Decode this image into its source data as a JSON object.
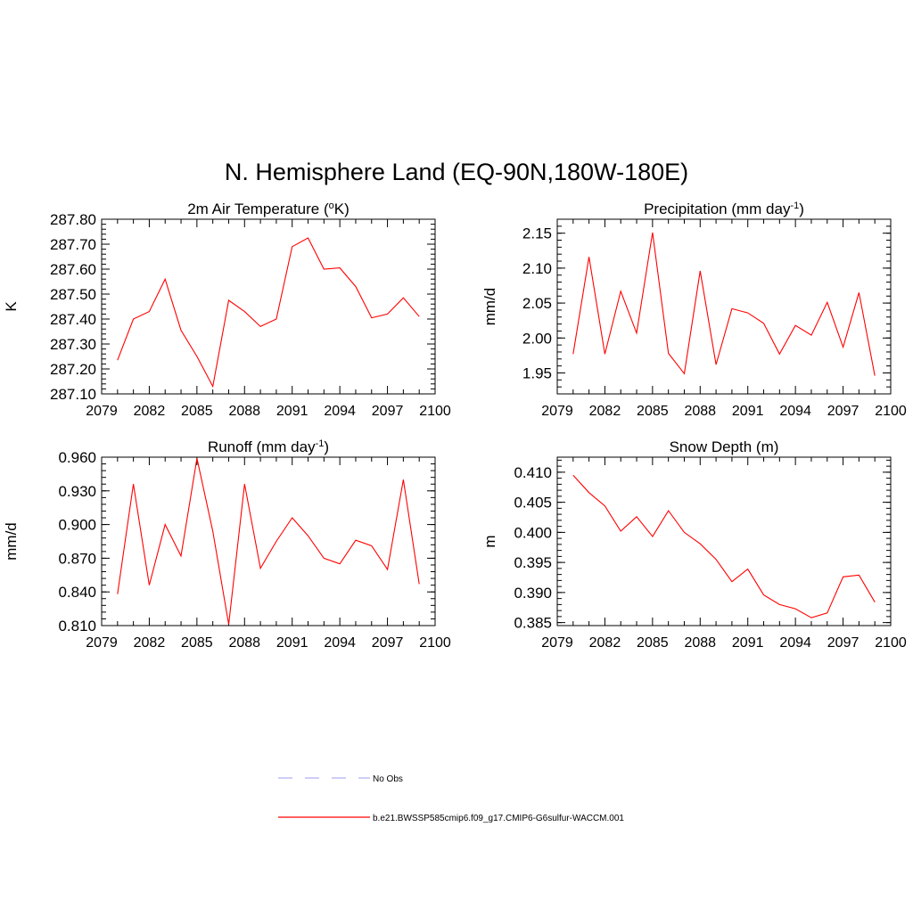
{
  "title": "N. Hemisphere Land (EQ-90N,180W-180E)",
  "chart_data": [
    {
      "type": "line",
      "title_main": "2m Air Temperature (",
      "title_sup": "o",
      "title_tail": "K)",
      "ylabel": "K",
      "xlim": [
        2079,
        2100
      ],
      "xticks": [
        2079,
        2082,
        2085,
        2088,
        2091,
        2094,
        2097,
        2100
      ],
      "ylim": [
        287.1,
        287.8
      ],
      "yticks": [
        "287.10",
        "287.20",
        "287.30",
        "287.40",
        "287.50",
        "287.60",
        "287.70",
        "287.80"
      ],
      "series": [
        {
          "color": "#ff0000",
          "x": [
            2080,
            2081,
            2082,
            2083,
            2084,
            2085,
            2086,
            2087,
            2088,
            2089,
            2090,
            2091,
            2092,
            2093,
            2094,
            2095,
            2096,
            2097,
            2098,
            2099
          ],
          "y": [
            287.235,
            287.4,
            287.43,
            287.56,
            287.355,
            287.25,
            287.13,
            287.475,
            287.43,
            287.37,
            287.4,
            287.69,
            287.725,
            287.6,
            287.605,
            287.53,
            287.405,
            287.42,
            287.485,
            287.41
          ]
        }
      ]
    },
    {
      "type": "line",
      "title_main": "Precipitation (mm day",
      "title_sup": "-1",
      "title_tail": ")",
      "ylabel": "mm/d",
      "xlim": [
        2079,
        2100
      ],
      "xticks": [
        2079,
        2082,
        2085,
        2088,
        2091,
        2094,
        2097,
        2100
      ],
      "ylim": [
        1.92,
        2.17
      ],
      "yticks": [
        "1.95",
        "2.00",
        "2.05",
        "2.10",
        "2.15"
      ],
      "series": [
        {
          "color": "#ff0000",
          "x": [
            2080,
            2081,
            2082,
            2083,
            2084,
            2085,
            2086,
            2087,
            2088,
            2089,
            2090,
            2091,
            2092,
            2093,
            2094,
            2095,
            2096,
            2097,
            2098,
            2099
          ],
          "y": [
            1.977,
            2.116,
            1.977,
            2.067,
            2.007,
            2.151,
            1.978,
            1.949,
            2.096,
            1.962,
            2.042,
            2.036,
            2.021,
            1.977,
            2.018,
            2.004,
            2.051,
            1.987,
            2.065,
            1.946
          ]
        }
      ]
    },
    {
      "type": "line",
      "title_main": "Runoff (mm day",
      "title_sup": "-1",
      "title_tail": ")",
      "ylabel": "mm/d",
      "xlim": [
        2079,
        2100
      ],
      "xticks": [
        2079,
        2082,
        2085,
        2088,
        2091,
        2094,
        2097,
        2100
      ],
      "ylim": [
        0.81,
        0.96
      ],
      "yticks": [
        "0.810",
        "0.840",
        "0.870",
        "0.900",
        "0.930",
        "0.960"
      ],
      "series": [
        {
          "color": "#ff0000",
          "x": [
            2080,
            2081,
            2082,
            2083,
            2084,
            2085,
            2086,
            2087,
            2088,
            2089,
            2090,
            2091,
            2092,
            2093,
            2094,
            2095,
            2096,
            2097,
            2098,
            2099
          ],
          "y": [
            0.838,
            0.936,
            0.846,
            0.9,
            0.872,
            0.959,
            0.894,
            0.811,
            0.936,
            0.861,
            0.885,
            0.906,
            0.89,
            0.87,
            0.865,
            0.886,
            0.881,
            0.86,
            0.94,
            0.847
          ]
        }
      ]
    },
    {
      "type": "line",
      "title_main": "Snow Depth (m)",
      "title_sup": "",
      "title_tail": "",
      "ylabel": "m",
      "xlim": [
        2079,
        2100
      ],
      "xticks": [
        2079,
        2082,
        2085,
        2088,
        2091,
        2094,
        2097,
        2100
      ],
      "ylim": [
        0.3845,
        0.4125
      ],
      "yticks": [
        "0.385",
        "0.390",
        "0.395",
        "0.400",
        "0.405",
        "0.410"
      ],
      "series": [
        {
          "color": "#ff0000",
          "x": [
            2080,
            2081,
            2082,
            2083,
            2084,
            2085,
            2086,
            2087,
            2088,
            2089,
            2090,
            2091,
            2092,
            2093,
            2094,
            2095,
            2096,
            2097,
            2098,
            2099
          ],
          "y": [
            0.4095,
            0.4066,
            0.4044,
            0.4002,
            0.4026,
            0.3993,
            0.4036,
            0.4,
            0.3981,
            0.3955,
            0.3918,
            0.3939,
            0.3896,
            0.388,
            0.3873,
            0.3858,
            0.3866,
            0.3926,
            0.3929,
            0.3884
          ]
        }
      ]
    }
  ],
  "legend": [
    {
      "label": "No Obs",
      "color": "#b0b0f0",
      "dash": true
    },
    {
      "label": "b.e21.BWSSP585cmip6.f09_g17.CMIP6-G6sulfur-WACCM.001",
      "color": "#ff0000",
      "dash": false
    }
  ]
}
